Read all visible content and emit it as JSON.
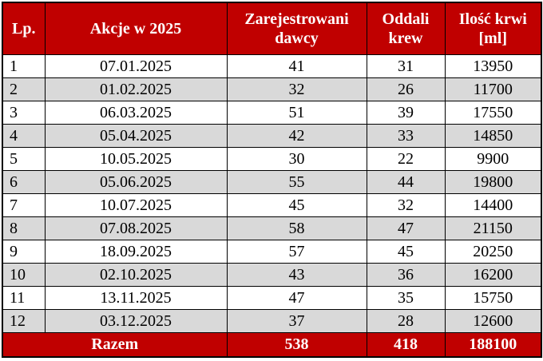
{
  "table": {
    "header": [
      "Lp.",
      "Akcje w 2025",
      "Zarejestrowani dawcy",
      "Oddali krew",
      "Ilość krwi [ml]"
    ],
    "rows": [
      [
        1,
        "07.01.2025",
        41,
        31,
        13950
      ],
      [
        2,
        "01.02.2025",
        32,
        26,
        11700
      ],
      [
        3,
        "06.03.2025",
        51,
        39,
        17550
      ],
      [
        4,
        "05.04.2025",
        42,
        33,
        14850
      ],
      [
        5,
        "10.05.2025",
        30,
        22,
        9900
      ],
      [
        6,
        "05.06.2025",
        55,
        44,
        19800
      ],
      [
        7,
        "10.07.2025",
        45,
        32,
        14400
      ],
      [
        8,
        "07.08.2025",
        58,
        47,
        21150
      ],
      [
        9,
        "18.09.2025",
        57,
        45,
        20250
      ],
      [
        10,
        "02.10.2025",
        43,
        36,
        16200
      ],
      [
        11,
        "13.11.2025",
        47,
        35,
        15750
      ],
      [
        12,
        "03.12.2025",
        37,
        28,
        12600
      ]
    ],
    "footer": [
      "Razem",
      538,
      418,
      188100
    ]
  }
}
